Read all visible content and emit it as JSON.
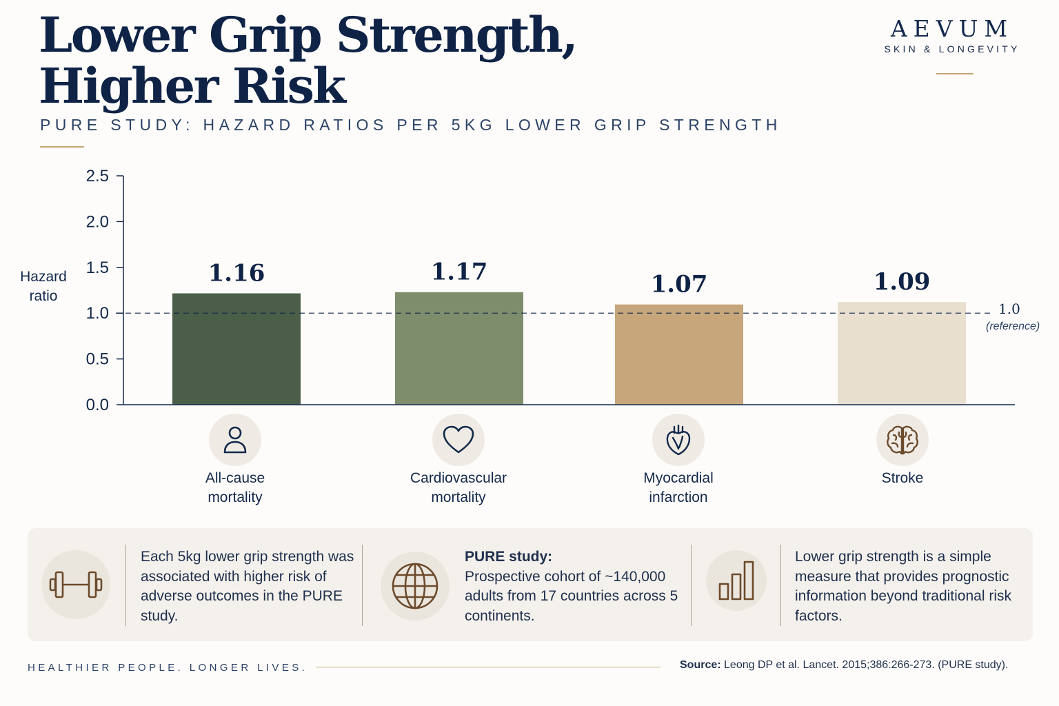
{
  "header": {
    "title_line1": "Lower Grip Strength,",
    "title_line2": "Higher Risk",
    "subtitle": "PURE STUDY: HAZARD RATIOS PER 5KG LOWER GRIP STRENGTH"
  },
  "brand": {
    "name": "AEVUM",
    "tagline": "SKIN & LONGEVITY"
  },
  "chart_data": {
    "type": "bar",
    "title": "",
    "xlabel": "",
    "ylabel": "Hazard ratio",
    "ylim": [
      0,
      2.5
    ],
    "yticks": [
      "0.0",
      "0.5",
      "1.0",
      "1.5",
      "2.0",
      "2.5"
    ],
    "categories": [
      "All-cause mortality",
      "Cardiovascular mortality",
      "Myocardial infarction",
      "Stroke"
    ],
    "values": [
      1.16,
      1.17,
      1.07,
      1.09
    ],
    "value_labels": [
      "1.16",
      "1.17",
      "1.07",
      "1.09"
    ],
    "bar_colors": [
      "#4a5e48",
      "#7e8e6c",
      "#c7a67b",
      "#e8dfcf"
    ],
    "reference_line": {
      "value": 1.0,
      "label": "1.0",
      "sublabel": "(reference)"
    },
    "grid": false,
    "legend": "none"
  },
  "categories_display": [
    {
      "line1": "All-cause",
      "line2": "mortality",
      "icon": "person-icon"
    },
    {
      "line1": "Cardiovascular",
      "line2": "mortality",
      "icon": "heart-icon"
    },
    {
      "line1": "Myocardial",
      "line2": "infarction",
      "icon": "anatomical-heart-icon"
    },
    {
      "line1": "Stroke",
      "line2": "",
      "icon": "brain-icon"
    }
  ],
  "info": {
    "col1_text": "Each 5kg lower grip strength was associated with higher risk of adverse outcomes in the PURE study.",
    "col2_title": "PURE study:",
    "col2_text": "Prospective cohort of ~140,000 adults from 17 countries across 5 continents.",
    "col3_text": "Lower grip strength is a simple measure that provides prognostic information beyond traditional risk factors."
  },
  "footer": {
    "tagline": "HEALTHIER PEOPLE. LONGER LIVES.",
    "source_label": "Source:",
    "source_text": "Leong DP et al. Lancet. 2015;386:266-273. (PURE study)."
  },
  "colors": {
    "navy": "#0f2346",
    "gold_accent": "#c5a574",
    "icon_brown": "#6b4a2c"
  }
}
